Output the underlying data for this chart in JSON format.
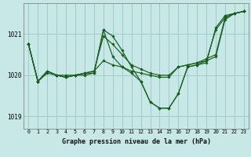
{
  "xlabel": "Graphe pression niveau de la mer (hPa)",
  "background_color": "#c8e8e8",
  "line_color": "#1a5e20",
  "grid_color": "#a0cccc",
  "ylim": [
    1018.7,
    1021.75
  ],
  "yticks": [
    1019,
    1020,
    1021
  ],
  "xlim": [
    -0.5,
    23.5
  ],
  "xticks": [
    0,
    1,
    2,
    3,
    4,
    5,
    6,
    7,
    8,
    9,
    10,
    11,
    12,
    13,
    14,
    15,
    16,
    17,
    18,
    19,
    20,
    21,
    22,
    23
  ],
  "series": [
    {
      "x": [
        0,
        1,
        2,
        3,
        4,
        5,
        6,
        7,
        8,
        9,
        10,
        11,
        12,
        13,
        14,
        15,
        16,
        17,
        18,
        19,
        20,
        21,
        22,
        23
      ],
      "y": [
        1020.75,
        1019.85,
        1020.1,
        1020.0,
        1019.95,
        1020.0,
        1020.05,
        1020.05,
        1021.1,
        1020.45,
        1020.2,
        1020.05,
        1019.85,
        1019.35,
        1019.2,
        1019.2,
        1019.55,
        1020.2,
        1020.25,
        1020.3,
        1021.15,
        1021.45,
        1021.5,
        1021.55
      ]
    },
    {
      "x": [
        0,
        1,
        2,
        3,
        4,
        5,
        6,
        7,
        8,
        9,
        10,
        11,
        12,
        13,
        14,
        15,
        16,
        17,
        18,
        19,
        20,
        21,
        22,
        23
      ],
      "y": [
        1020.75,
        1019.85,
        1020.05,
        1020.0,
        1019.95,
        1020.0,
        1020.05,
        1020.1,
        1020.35,
        1020.25,
        1020.2,
        1020.1,
        1020.05,
        1020.0,
        1019.95,
        1019.95,
        1020.2,
        1020.25,
        1020.3,
        1020.4,
        1020.5,
        1021.4,
        1021.5,
        1021.55
      ]
    },
    {
      "x": [
        0,
        1,
        2,
        3,
        4,
        5,
        6,
        7,
        8,
        9,
        10,
        11,
        12,
        13,
        14,
        15,
        16,
        17,
        18,
        19,
        20,
        21,
        22,
        23
      ],
      "y": [
        1020.75,
        1019.85,
        1020.1,
        1020.0,
        1020.0,
        1020.0,
        1020.05,
        1020.1,
        1020.95,
        1020.75,
        1020.5,
        1020.25,
        1020.15,
        1020.05,
        1020.0,
        1020.0,
        1020.2,
        1020.25,
        1020.3,
        1020.35,
        1020.45,
        1021.35,
        1021.5,
        1021.55
      ]
    },
    {
      "x": [
        0,
        1,
        2,
        3,
        4,
        5,
        6,
        7,
        8,
        9,
        10,
        11,
        12,
        13,
        14,
        15,
        16,
        17,
        18,
        19,
        20,
        21,
        22,
        23
      ],
      "y": [
        1020.75,
        1019.85,
        1020.1,
        1020.0,
        1019.95,
        1020.0,
        1020.0,
        1020.05,
        1021.1,
        1020.95,
        1020.6,
        1020.2,
        1019.85,
        1019.35,
        1019.2,
        1019.2,
        1019.55,
        1020.2,
        1020.25,
        1020.35,
        1021.1,
        1021.4,
        1021.5,
        1021.55
      ]
    }
  ]
}
